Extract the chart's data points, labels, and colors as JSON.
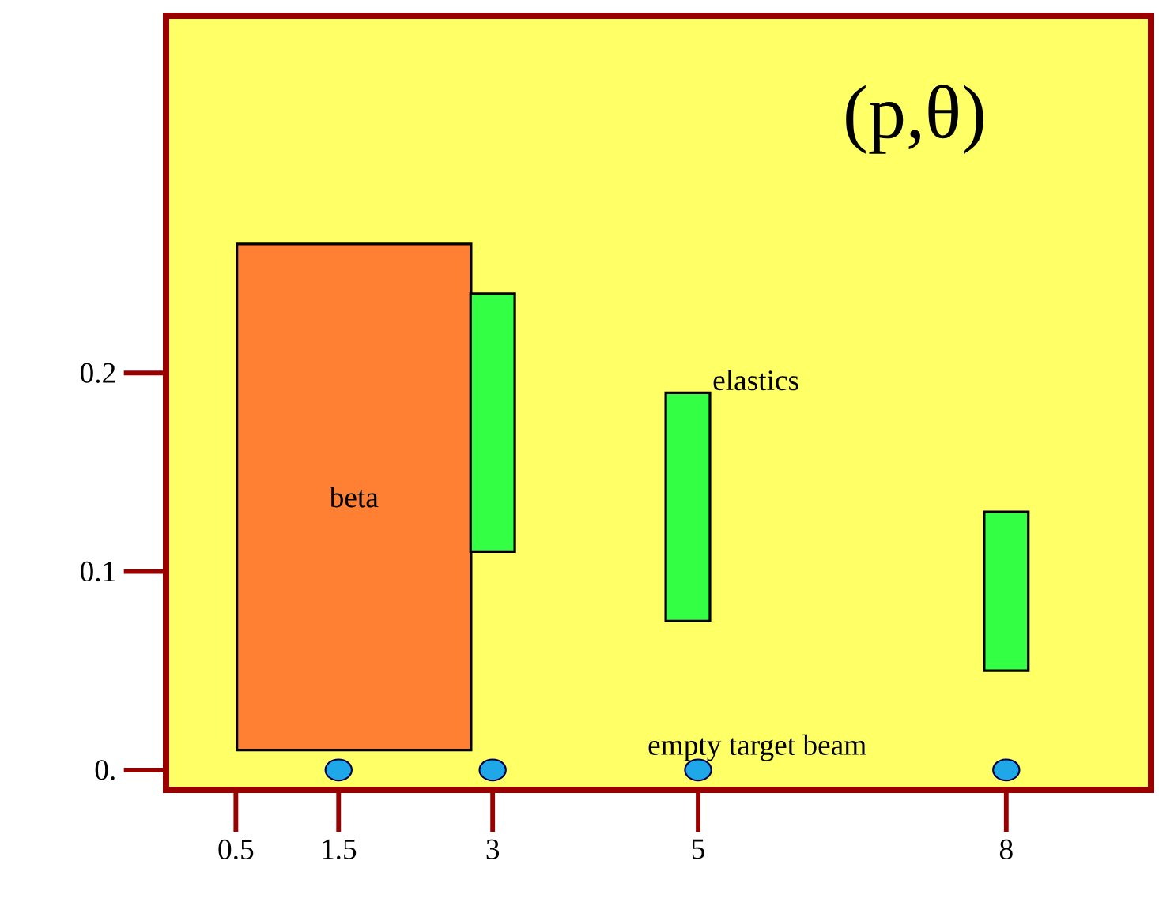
{
  "chart_data": {
    "type": "bar",
    "title": "(p,θ)",
    "xlim": [
      -0.18,
      9.41
    ],
    "ylim": [
      -0.01,
      0.38
    ],
    "xticks": [
      0.5,
      1.5,
      3,
      5,
      8
    ],
    "yticks": [
      {
        "value": 0,
        "label": "0."
      },
      0.1,
      0.2
    ],
    "grid": false,
    "series": [
      {
        "name": "beta",
        "color": "#ff7f33",
        "x": [
          1.65
        ],
        "base": [
          0.01
        ],
        "values": [
          0.255
        ]
      },
      {
        "name": "elastics",
        "color": "#33ff44",
        "x": [
          3,
          4.9,
          8
        ],
        "base": [
          0.11,
          0.075,
          0.05
        ],
        "values": [
          0.13,
          0.115,
          0.08
        ]
      },
      {
        "name": "empty target beam",
        "type": "scatter",
        "color": "#1ea8e8",
        "x": [
          1.5,
          3,
          5,
          8
        ],
        "values": [
          0,
          0,
          0,
          0
        ]
      }
    ]
  }
}
